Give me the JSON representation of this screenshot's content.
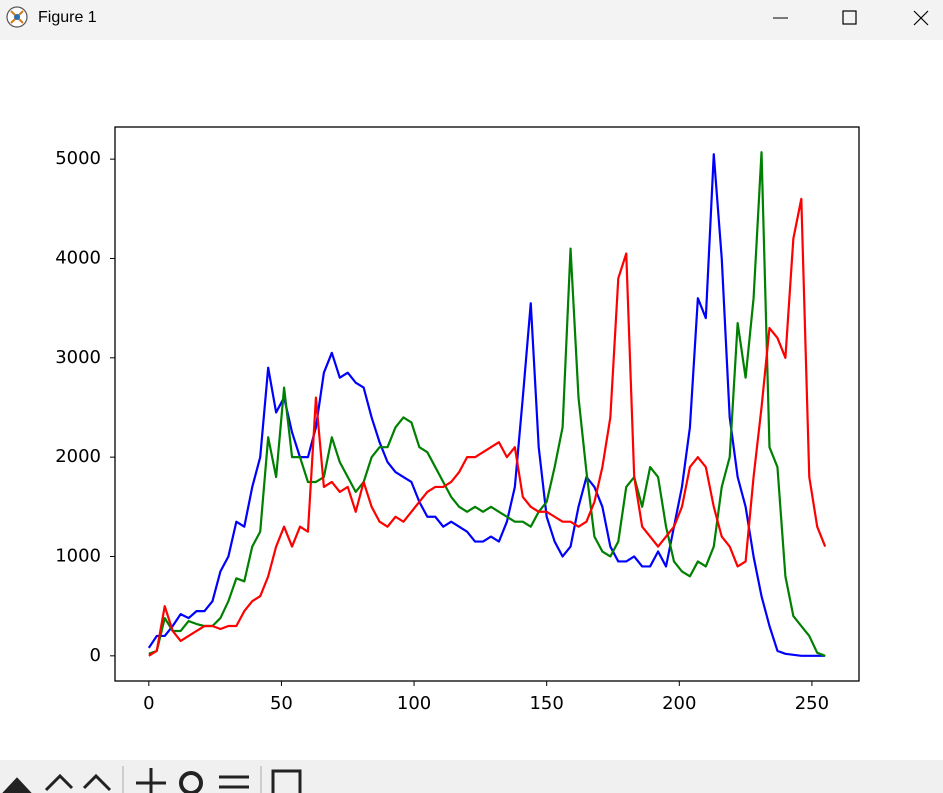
{
  "window": {
    "title": "Figure 1"
  },
  "chart_data": {
    "type": "line",
    "x": [
      0,
      3,
      6,
      9,
      12,
      15,
      18,
      21,
      24,
      27,
      30,
      33,
      36,
      39,
      42,
      45,
      48,
      51,
      54,
      57,
      60,
      63,
      66,
      69,
      72,
      75,
      78,
      81,
      84,
      87,
      90,
      93,
      96,
      99,
      102,
      105,
      108,
      111,
      114,
      117,
      120,
      123,
      126,
      129,
      132,
      135,
      138,
      141,
      144,
      147,
      150,
      153,
      156,
      159,
      162,
      165,
      168,
      171,
      174,
      177,
      180,
      183,
      186,
      189,
      192,
      195,
      198,
      201,
      204,
      207,
      210,
      213,
      216,
      219,
      222,
      225,
      228,
      231,
      234,
      237,
      240,
      243,
      246,
      249,
      252,
      255
    ],
    "series": [
      {
        "color": "#0000ff",
        "values": [
          80,
          200,
          200,
          300,
          420,
          380,
          450,
          450,
          550,
          850,
          1000,
          1350,
          1300,
          1700,
          2000,
          2900,
          2450,
          2600,
          2250,
          2000,
          2000,
          2300,
          2850,
          3050,
          2800,
          2850,
          2750,
          2700,
          2400,
          2150,
          1950,
          1850,
          1800,
          1750,
          1550,
          1400,
          1400,
          1300,
          1350,
          1300,
          1250,
          1150,
          1150,
          1200,
          1150,
          1350,
          1700,
          2600,
          3550,
          2100,
          1400,
          1150,
          1000,
          1100,
          1500,
          1800,
          1700,
          1500,
          1100,
          950,
          950,
          1000,
          900,
          900,
          1050,
          900,
          1300,
          1700,
          2300,
          3600,
          3400,
          5050,
          4000,
          2400,
          1800,
          1500,
          1000,
          600,
          300,
          50,
          20,
          10,
          0,
          0,
          0,
          0
        ]
      },
      {
        "color": "#008000",
        "values": [
          20,
          50,
          380,
          250,
          250,
          350,
          320,
          300,
          300,
          380,
          550,
          780,
          750,
          1100,
          1250,
          2200,
          1800,
          2700,
          2000,
          2000,
          1750,
          1750,
          1800,
          2200,
          1950,
          1800,
          1650,
          1750,
          2000,
          2100,
          2100,
          2300,
          2400,
          2350,
          2100,
          2050,
          1900,
          1750,
          1600,
          1500,
          1450,
          1500,
          1450,
          1500,
          1450,
          1400,
          1350,
          1350,
          1300,
          1450,
          1550,
          1900,
          2300,
          4100,
          2600,
          1850,
          1200,
          1050,
          1000,
          1150,
          1700,
          1800,
          1500,
          1900,
          1800,
          1300,
          950,
          850,
          800,
          950,
          900,
          1100,
          1700,
          2000,
          3350,
          2800,
          3600,
          5070,
          2100,
          1900,
          800,
          400,
          300,
          200,
          30,
          0
        ]
      },
      {
        "color": "#ff0000",
        "values": [
          0,
          50,
          500,
          250,
          150,
          200,
          250,
          300,
          300,
          270,
          300,
          300,
          450,
          550,
          600,
          800,
          1100,
          1300,
          1100,
          1300,
          1250,
          2600,
          1700,
          1750,
          1650,
          1700,
          1450,
          1750,
          1500,
          1350,
          1300,
          1400,
          1350,
          1450,
          1550,
          1650,
          1700,
          1700,
          1750,
          1850,
          2000,
          2000,
          2050,
          2100,
          2150,
          2000,
          2100,
          1600,
          1500,
          1450,
          1450,
          1400,
          1350,
          1350,
          1300,
          1350,
          1550,
          1900,
          2400,
          3800,
          4050,
          1800,
          1300,
          1200,
          1100,
          1200,
          1300,
          1500,
          1900,
          2000,
          1900,
          1500,
          1200,
          1100,
          900,
          950,
          1800,
          2500,
          3300,
          3200,
          3000,
          4200,
          4600,
          1800,
          1300,
          1100
        ]
      }
    ],
    "xlim": [
      -12.75,
      267.75
    ],
    "ylim": [
      -253.5,
      5323.5
    ],
    "xticks": [
      0,
      50,
      100,
      150,
      200,
      250
    ],
    "yticks": [
      0,
      1000,
      2000,
      3000,
      4000,
      5000
    ]
  }
}
